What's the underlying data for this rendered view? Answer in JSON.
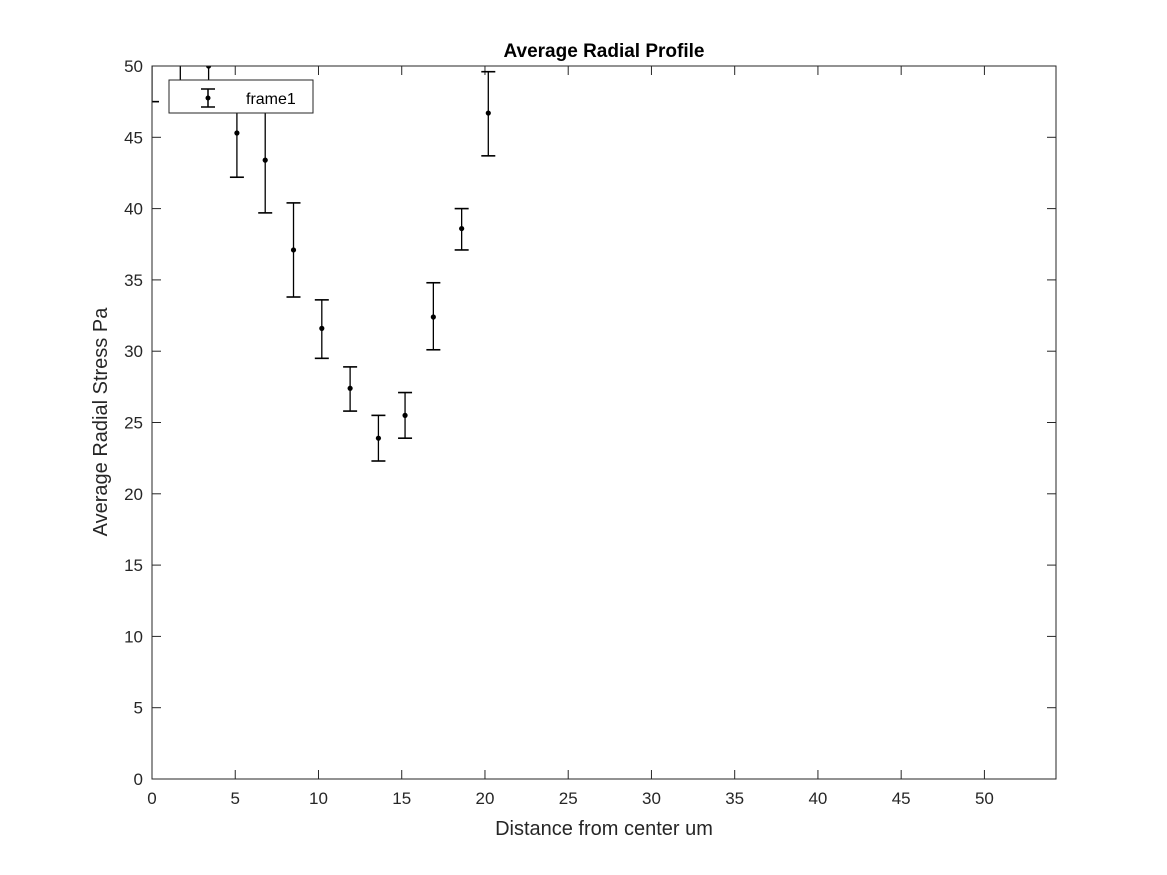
{
  "chart_data": {
    "type": "scatter",
    "title": "Average Radial Profile",
    "xlabel": "Distance from center um",
    "ylabel": "Average Radial Stress Pa",
    "xlim": [
      0,
      54.3
    ],
    "ylim": [
      0,
      50
    ],
    "xticks": [
      0,
      5,
      10,
      15,
      20,
      25,
      30,
      35,
      40,
      45,
      50
    ],
    "yticks": [
      0,
      5,
      10,
      15,
      20,
      25,
      30,
      35,
      40,
      45,
      50
    ],
    "grid": false,
    "legend": {
      "position": "top-left"
    },
    "series": [
      {
        "name": "frame1",
        "color": "#000000",
        "marker": "dot",
        "error_bars": true,
        "x": [
          0,
          1.7,
          3.4,
          5.1,
          6.8,
          8.5,
          10.2,
          11.9,
          13.6,
          15.2,
          16.9,
          18.6,
          20.2
        ],
        "y": [
          50.5,
          51.0,
          50.0,
          45.3,
          43.4,
          37.1,
          31.6,
          27.4,
          23.9,
          25.5,
          32.4,
          38.6,
          46.7
        ],
        "lower": [
          47.5,
          48.5,
          47.0,
          42.2,
          39.7,
          33.8,
          29.5,
          25.8,
          22.3,
          23.9,
          30.1,
          37.1,
          43.7
        ],
        "upper": [
          53.5,
          53.5,
          53.0,
          48.4,
          47.1,
          40.4,
          33.6,
          28.9,
          25.5,
          27.1,
          34.8,
          40.0,
          49.6
        ]
      }
    ]
  }
}
